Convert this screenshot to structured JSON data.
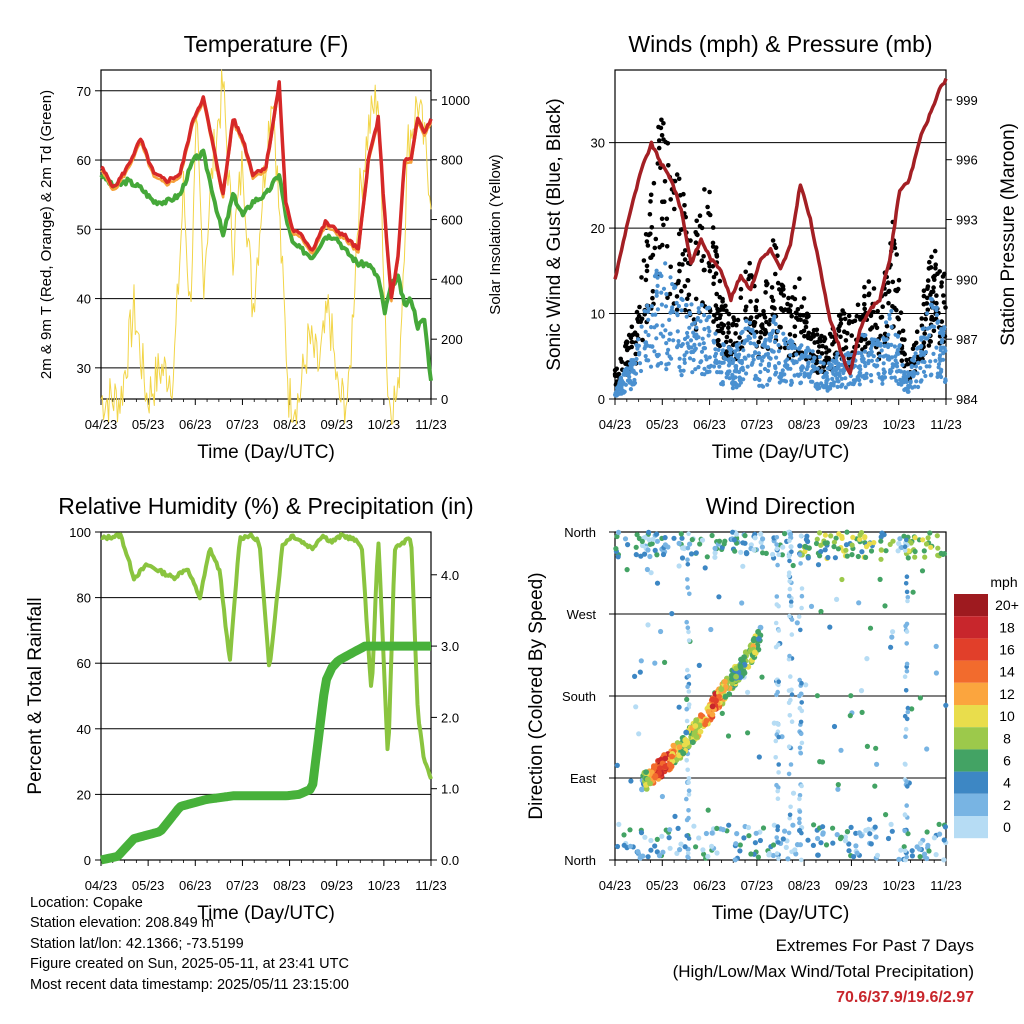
{
  "x_ticks": [
    "04/23",
    "05/23",
    "06/23",
    "07/23",
    "08/23",
    "09/23",
    "10/23",
    "11/23"
  ],
  "chart_data": [
    {
      "type": "line",
      "title": "Temperature (F)",
      "xlabel": "Time (Day/UTC)",
      "ylabel": "2m & 9m T (Red, Orange) & 2m Td (Green)",
      "ylabel_right": "Solar Insolation (Yellow)",
      "ylim": [
        25.5,
        73
      ],
      "yticks": [
        30,
        40,
        50,
        60,
        70
      ],
      "ylim_right": [
        0,
        1100
      ],
      "yticks_right": [
        0,
        200,
        400,
        600,
        800,
        1000
      ],
      "grid": "horizontal",
      "series": [
        {
          "color": "#d62828",
          "x": [
            0,
            0.04,
            0.08,
            0.12,
            0.16,
            0.2,
            0.24,
            0.28,
            0.31,
            0.34,
            0.37,
            0.4,
            0.43,
            0.46,
            0.5,
            0.54,
            0.56,
            0.58,
            0.61,
            0.64,
            0.68,
            0.71,
            0.74,
            0.78,
            0.81,
            0.84,
            0.86,
            0.88,
            0.9,
            0.92,
            0.94,
            0.96,
            0.98,
            1
          ],
          "y": [
            59,
            56,
            59,
            63,
            58,
            57,
            58,
            66,
            69,
            62,
            55,
            66,
            63,
            58,
            59,
            71,
            54,
            50,
            49,
            47,
            51,
            50,
            49,
            47,
            60,
            66,
            52,
            40,
            46,
            60,
            60,
            66,
            64,
            66
          ]
        },
        {
          "color": "#f6a13a",
          "x": [
            0,
            0.04,
            0.08,
            0.12,
            0.16,
            0.2,
            0.24,
            0.28,
            0.31,
            0.34,
            0.37,
            0.4,
            0.43,
            0.46,
            0.5,
            0.54,
            0.56,
            0.58,
            0.61,
            0.64,
            0.68,
            0.71,
            0.74,
            0.78,
            0.81,
            0.84,
            0.86,
            0.88,
            0.9,
            0.92,
            0.94,
            0.96,
            0.98,
            1
          ],
          "y": [
            58.5,
            55.5,
            58.5,
            62.5,
            57.5,
            56.5,
            57.5,
            65.5,
            68.5,
            61.5,
            54.5,
            65.5,
            62.5,
            57.5,
            58.5,
            70.5,
            53.5,
            49.5,
            48.5,
            46.5,
            50.5,
            49.5,
            48.5,
            46.5,
            59.5,
            65.5,
            51.5,
            39.5,
            45.5,
            59.5,
            59.5,
            65.5,
            63.5,
            65.5
          ]
        },
        {
          "color": "#45a839",
          "x": [
            0,
            0.04,
            0.08,
            0.12,
            0.16,
            0.2,
            0.24,
            0.28,
            0.31,
            0.34,
            0.37,
            0.4,
            0.43,
            0.46,
            0.5,
            0.54,
            0.56,
            0.58,
            0.61,
            0.64,
            0.68,
            0.71,
            0.74,
            0.78,
            0.81,
            0.84,
            0.86,
            0.88,
            0.9,
            0.92,
            0.94,
            0.96,
            0.98,
            1
          ],
          "y": [
            58,
            56,
            57,
            56,
            54,
            54,
            55,
            60,
            61,
            55,
            49,
            55,
            52,
            54,
            55,
            58,
            52,
            48,
            47,
            46,
            49,
            49,
            47,
            45,
            45,
            43,
            38,
            42,
            43,
            39,
            40,
            36,
            37,
            28
          ]
        },
        {
          "color": "#f2d548",
          "x": [
            0,
            0.06,
            0.1,
            0.14,
            0.18,
            0.22,
            0.25,
            0.27,
            0.29,
            0.31,
            0.34,
            0.37,
            0.4,
            0.43,
            0.46,
            0.49,
            0.52,
            0.55,
            0.57,
            0.6,
            0.63,
            0.66,
            0.69,
            0.72,
            0.75,
            0.78,
            0.81,
            0.84,
            0.87,
            0.9,
            0.93,
            0.96,
            1
          ],
          "y": [
            0,
            0,
            300,
            0,
            100,
            80,
            700,
            300,
            900,
            400,
            800,
            1050,
            500,
            800,
            300,
            700,
            1050,
            400,
            0,
            0,
            200,
            100,
            300,
            0,
            0,
            650,
            900,
            1030,
            0,
            0,
            850,
            1000,
            700
          ]
        }
      ]
    },
    {
      "type": "scatter",
      "title": "Winds (mph) & Pressure (mb)",
      "xlabel": "Time (Day/UTC)",
      "ylabel": "Sonic Wind & Gust (Blue, Black)",
      "ylabel_right": "Station Pressure (Maroon)",
      "ylim": [
        0,
        38.5
      ],
      "yticks": [
        0,
        10,
        20,
        30
      ],
      "ylim_right": [
        984,
        1000.5
      ],
      "yticks_right": [
        984,
        987,
        990,
        993,
        996,
        999
      ],
      "grid": "horizontal",
      "series": [
        {
          "color": "#000000",
          "x": [
            0,
            0.06,
            0.1,
            0.14,
            0.16,
            0.2,
            0.24,
            0.28,
            0.32,
            0.36,
            0.4,
            0.44,
            0.48,
            0.52,
            0.56,
            0.6,
            0.64,
            0.68,
            0.72,
            0.76,
            0.8,
            0.84,
            0.88,
            0.92,
            0.96,
            1
          ],
          "y": [
            3,
            8,
            20,
            30,
            25,
            21,
            17,
            22,
            11,
            8,
            15,
            9,
            16,
            10,
            12,
            7,
            6,
            9,
            8,
            12,
            10,
            18,
            4,
            8,
            16,
            12
          ]
        },
        {
          "color": "#4a90d0",
          "x": [
            0,
            0.06,
            0.1,
            0.14,
            0.16,
            0.2,
            0.24,
            0.28,
            0.32,
            0.36,
            0.4,
            0.44,
            0.48,
            0.52,
            0.56,
            0.6,
            0.64,
            0.68,
            0.72,
            0.76,
            0.8,
            0.84,
            0.88,
            0.92,
            0.96,
            1
          ],
          "y": [
            1,
            4,
            9,
            12,
            11,
            9,
            8,
            8,
            5,
            4,
            7,
            4,
            7,
            5,
            5,
            4,
            3,
            4,
            4,
            6,
            5,
            8,
            2,
            5,
            9,
            6
          ]
        },
        {
          "color": "#a31f24",
          "x": [
            0,
            0.04,
            0.08,
            0.11,
            0.14,
            0.17,
            0.2,
            0.23,
            0.26,
            0.29,
            0.32,
            0.35,
            0.38,
            0.41,
            0.44,
            0.47,
            0.5,
            0.53,
            0.56,
            0.59,
            0.62,
            0.65,
            0.68,
            0.71,
            0.74,
            0.77,
            0.8,
            0.83,
            0.86,
            0.89,
            0.92,
            0.95,
            0.98,
            1
          ],
          "y": [
            990,
            993,
            995.5,
            996.8,
            995.8,
            995,
            993.5,
            990.8,
            992,
            991,
            990.5,
            989,
            990.2,
            989.5,
            991,
            991.5,
            990.5,
            991.7,
            994.8,
            993,
            990.5,
            988,
            986.5,
            985.2,
            987.5,
            988.5,
            989,
            991,
            994.5,
            995,
            997,
            998.2,
            999.5,
            1000
          ]
        }
      ]
    },
    {
      "type": "line",
      "title": "Relative Humidity (%) & Precipitation (in)",
      "xlabel": "Time (Day/UTC)",
      "ylabel": "Percent & Total Rainfall",
      "ylim": [
        0,
        100
      ],
      "yticks": [
        0,
        20,
        40,
        60,
        80,
        100
      ],
      "ylim_right": [
        0,
        4.6
      ],
      "yticks_right": [
        "0.0",
        "1.0",
        "2.0",
        "3.0",
        "4.0"
      ],
      "grid": "horizontal",
      "series": [
        {
          "color": "#8ac43f",
          "x": [
            0,
            0.06,
            0.1,
            0.14,
            0.18,
            0.22,
            0.26,
            0.3,
            0.33,
            0.36,
            0.39,
            0.42,
            0.45,
            0.48,
            0.51,
            0.55,
            0.58,
            0.61,
            0.64,
            0.67,
            0.7,
            0.73,
            0.76,
            0.79,
            0.82,
            0.84,
            0.87,
            0.89,
            0.92,
            0.94,
            0.96,
            0.98,
            1
          ],
          "y": [
            98,
            99,
            86,
            90,
            88,
            86,
            89,
            80,
            95,
            88,
            60,
            98,
            99,
            97,
            58,
            96,
            99,
            97,
            95,
            99,
            97,
            99,
            98,
            96,
            50,
            99,
            30,
            95,
            97,
            98,
            45,
            30,
            25
          ]
        },
        {
          "color": "#47b13a",
          "x": [
            0,
            0.05,
            0.1,
            0.14,
            0.18,
            0.24,
            0.28,
            0.32,
            0.4,
            0.5,
            0.56,
            0.6,
            0.64,
            0.68,
            0.7,
            0.72,
            0.76,
            0.8,
            0.86,
            0.9,
            0.95,
            1
          ],
          "y": [
            0,
            0.05,
            0.3,
            0.35,
            0.4,
            0.75,
            0.8,
            0.85,
            0.9,
            0.9,
            0.9,
            0.92,
            1.0,
            2.5,
            2.7,
            2.8,
            2.9,
            3.0,
            3.0,
            3.0,
            3.0,
            3.0
          ]
        }
      ]
    },
    {
      "type": "scatter",
      "title": "Wind Direction",
      "xlabel": "Time (Day/UTC)",
      "ylabel": "Direction (Colored By Speed)",
      "yticks": [
        "North",
        "East",
        "South",
        "West",
        "North"
      ],
      "legend": {
        "title": "mph",
        "labels": [
          "20+",
          "18",
          "16",
          "14",
          "12",
          "10",
          "8",
          "6",
          "4",
          "2",
          "0"
        ],
        "colors": [
          "#9e1a1f",
          "#c8262c",
          "#e13f2a",
          "#f26b2d",
          "#fba53e",
          "#e9dd4c",
          "#9cc94b",
          "#43a364",
          "#3d87c4",
          "#78b4e3",
          "#b6dcf4"
        ]
      },
      "series": [
        {
          "name": "diagonal",
          "x": [
            0.08,
            0.1,
            0.12,
            0.14,
            0.16,
            0.18,
            0.2,
            0.22,
            0.24,
            0.26,
            0.28,
            0.3,
            0.32,
            0.34,
            0.36,
            0.38,
            0.4,
            0.42,
            0.44
          ],
          "y": [
            84,
            90,
            96,
            102,
            108,
            116,
            124,
            132,
            140,
            150,
            160,
            170,
            180,
            190,
            200,
            210,
            220,
            232,
            245
          ],
          "speed": [
            6,
            10,
            14,
            18,
            16,
            12,
            10,
            8,
            10,
            12,
            14,
            16,
            12,
            10,
            8,
            6,
            8,
            10,
            6
          ]
        }
      ]
    }
  ],
  "info": {
    "location": "Location: Copake",
    "elevation": "Station elevation: 208.849 m",
    "latlon": "Station lat/lon: 42.1366; -73.5199",
    "created": "Figure created on Sun, 2025-05-11, at 23:41 UTC",
    "timestamp": "Most recent data timestamp: 2025/05/11 23:15:00"
  },
  "extremes": {
    "title": "Extremes For Past 7 Days",
    "subtitle": "(High/Low/Max Wind/Total Precipitation)",
    "value": "70.6/37.9/19.6/2.97"
  }
}
